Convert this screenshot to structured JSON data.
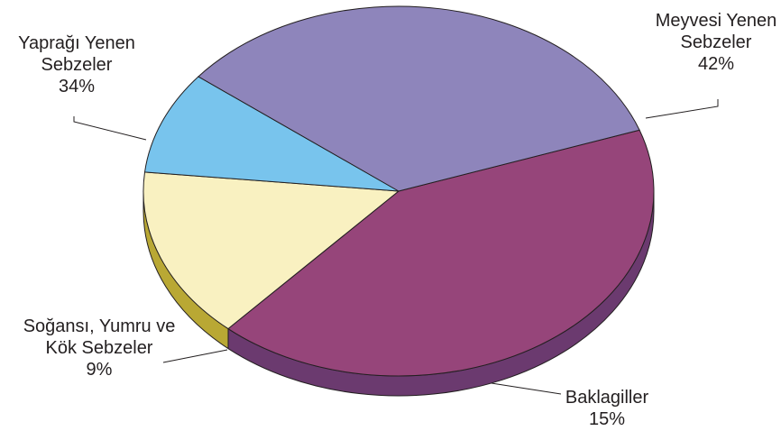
{
  "chart_data": {
    "type": "pie",
    "title": "",
    "slices": [
      {
        "label": "Meyvesi Yenen Sebzeler",
        "label_lines": [
          "Meyvesi Yenen",
          "Sebzeler"
        ],
        "value": 42,
        "value_label": "42%",
        "color": "#96457a",
        "side_color": "#6b3a6f"
      },
      {
        "label": "Baklagiller",
        "label_lines": [
          "Baklagiller"
        ],
        "value": 15,
        "value_label": "15%",
        "color": "#f9f1c1",
        "side_color": "#b9a834"
      },
      {
        "label": "Soğansı, Yumru ve Kök Sebzeler",
        "label_lines": [
          "Soğansı, Yumru ve",
          "Kök Sebzeler"
        ],
        "value": 9,
        "value_label": "9%",
        "color": "#78c4ed",
        "side_color": "#1b75b8"
      },
      {
        "label": "Yaprağı Yenen Sebzeler",
        "label_lines": [
          "Yaprağı Yenen",
          "Sebzeler"
        ],
        "value": 34,
        "value_label": "34%",
        "color": "#8e85bb",
        "side_color": "#6e67a3"
      }
    ]
  }
}
